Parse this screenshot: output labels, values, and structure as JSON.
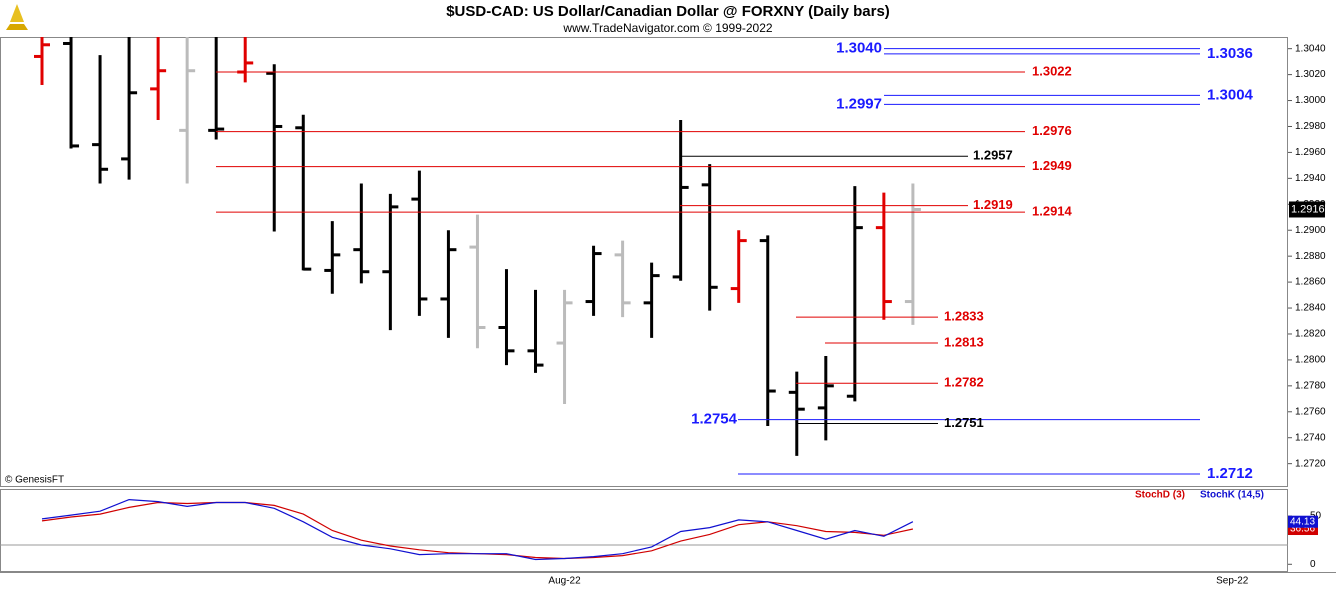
{
  "chart_data": [
    {
      "type": "ohlc",
      "title": "$USD-CAD:  US Dollar/Canadian Dollar @ FORXNY  (Daily bars)",
      "subtitle": "www.TradeNavigator.com © 1999-2022",
      "watermark": "© GenesisFT",
      "open": [
        1.3034,
        1.3044,
        1.2966,
        1.2955,
        1.3009,
        1.2977,
        1.2977,
        1.3022,
        1.3021,
        1.2979,
        1.2869,
        1.2885,
        1.2868,
        1.2924,
        1.2847,
        1.2887,
        1.2825,
        1.2807,
        1.2813,
        1.2845,
        1.2881,
        1.2844,
        1.2864,
        1.2935,
        1.2855,
        1.2892,
        1.2775,
        1.2763,
        1.2772,
        1.2902,
        1.2845
      ],
      "high": [
        1.305,
        1.305,
        1.3035,
        1.305,
        1.305,
        1.305,
        1.305,
        1.305,
        1.3028,
        1.2989,
        1.2907,
        1.2936,
        1.2928,
        1.2946,
        1.29,
        1.2912,
        1.287,
        1.2854,
        1.2854,
        1.2888,
        1.2892,
        1.2875,
        1.2985,
        1.2951,
        1.29,
        1.2896,
        1.2791,
        1.2803,
        1.2934,
        1.2929,
        1.2936
      ],
      "low": [
        1.3012,
        1.2963,
        1.2936,
        1.2939,
        1.2985,
        1.2936,
        1.297,
        1.3014,
        1.2899,
        1.2869,
        1.2851,
        1.2859,
        1.2823,
        1.2834,
        1.2817,
        1.2809,
        1.2796,
        1.279,
        1.2766,
        1.2834,
        1.2833,
        1.2817,
        1.2861,
        1.2838,
        1.2844,
        1.2749,
        1.2726,
        1.2738,
        1.2768,
        1.2831,
        1.2827
      ],
      "close": [
        1.3043,
        1.2965,
        1.2947,
        1.3006,
        1.3023,
        1.3023,
        1.2978,
        1.3029,
        1.298,
        1.287,
        1.2881,
        1.2868,
        1.2918,
        1.2847,
        1.2885,
        1.2825,
        1.2807,
        1.2796,
        1.2844,
        1.2882,
        1.2844,
        1.2865,
        1.2933,
        1.2856,
        1.2892,
        1.2776,
        1.2762,
        1.278,
        1.2902,
        1.2845,
        1.2916
      ],
      "colors": [
        "#e00000",
        "#000000",
        "#000000",
        "#000000",
        "#e00000",
        "#bbbbbb",
        "#000000",
        "#e00000",
        "#000000",
        "#000000",
        "#000000",
        "#000000",
        "#000000",
        "#000000",
        "#000000",
        "#bbbbbb",
        "#000000",
        "#000000",
        "#bbbbbb",
        "#000000",
        "#bbbbbb",
        "#000000",
        "#000000",
        "#000000",
        "#e00000",
        "#000000",
        "#000000",
        "#000000",
        "#000000",
        "#e00000",
        "#bbbbbb"
      ],
      "ylim": [
        1.2702,
        1.3049
      ],
      "yticks": [
        {
          "value": 1.272,
          "label": "1.2720"
        },
        {
          "value": 1.274,
          "label": "1.2740"
        },
        {
          "value": 1.276,
          "label": "1.2760"
        },
        {
          "value": 1.278,
          "label": "1.2780"
        },
        {
          "value": 1.28,
          "label": "1.2800"
        },
        {
          "value": 1.282,
          "label": "1.2820"
        },
        {
          "value": 1.284,
          "label": "1.2840"
        },
        {
          "value": 1.286,
          "label": "1.2860"
        },
        {
          "value": 1.288,
          "label": "1.2880"
        },
        {
          "value": 1.29,
          "label": "1.2900"
        },
        {
          "value": 1.292,
          "label": "1.2920"
        },
        {
          "value": 1.294,
          "label": "1.2940"
        },
        {
          "value": 1.296,
          "label": "1.2960"
        },
        {
          "value": 1.298,
          "label": "1.2980"
        },
        {
          "value": 1.3,
          "label": "1.3000"
        },
        {
          "value": 1.302,
          "label": "1.3020"
        },
        {
          "value": 1.304,
          "label": "1.3040"
        }
      ],
      "levels": [
        {
          "value": 1.304,
          "label": "1.3040",
          "color": "#1a1aff"
        },
        {
          "value": 1.3036,
          "label": "1.3036",
          "color": "#1a1aff"
        },
        {
          "value": 1.3022,
          "label": "1.3022",
          "color": "#e00000"
        },
        {
          "value": 1.3004,
          "label": "1.3004",
          "color": "#1a1aff"
        },
        {
          "value": 1.2997,
          "label": "1.2997",
          "color": "#1a1aff"
        },
        {
          "value": 1.2976,
          "label": "1.2976",
          "color": "#e00000"
        },
        {
          "value": 1.2957,
          "label": "1.2957",
          "color": "#000000"
        },
        {
          "value": 1.2949,
          "label": "1.2949",
          "color": "#e00000"
        },
        {
          "value": 1.2919,
          "label": "1.2919",
          "color": "#e00000"
        },
        {
          "value": 1.2914,
          "label": "1.2914",
          "color": "#e00000"
        },
        {
          "value": 1.2833,
          "label": "1.2833",
          "color": "#e00000"
        },
        {
          "value": 1.2813,
          "label": "1.2813",
          "color": "#e00000"
        },
        {
          "value": 1.2782,
          "label": "1.2782",
          "color": "#e00000"
        },
        {
          "value": 1.2754,
          "label": "1.2754",
          "color": "#1a1aff"
        },
        {
          "value": 1.2751,
          "label": "1.2751",
          "color": "#000000"
        },
        {
          "value": 1.2712,
          "label": "1.2712",
          "color": "#1a1aff"
        }
      ],
      "last_price": 1.2916
    },
    {
      "type": "line",
      "categories": [
        null,
        null,
        null,
        null,
        null,
        null,
        null,
        null,
        null,
        null,
        null,
        null,
        null,
        null,
        null,
        null,
        null,
        null,
        "Aug-22",
        null,
        null,
        null,
        null,
        null,
        null,
        null,
        null,
        null,
        null,
        null,
        null,
        null,
        null,
        null,
        null,
        null,
        null,
        null,
        null,
        null,
        null,
        "Sep-22"
      ],
      "series": [
        {
          "name": "StochD (3)",
          "color": "#d00000",
          "values": [
            45,
            49,
            52,
            59,
            64,
            63,
            64,
            64,
            61,
            52,
            35,
            25,
            19,
            15,
            12,
            11,
            10,
            7,
            6,
            7,
            9,
            14,
            24,
            31,
            41,
            44,
            40,
            34,
            33,
            30,
            36.56,
            null,
            null,
            null,
            null,
            null,
            null,
            null,
            null,
            null,
            null,
            null
          ]
        },
        {
          "name": "StochK (14,5)",
          "color": "#1010d0",
          "values": [
            47,
            51,
            55,
            67,
            65,
            60,
            64,
            64,
            58,
            44,
            28,
            20,
            16,
            10,
            11,
            11,
            11,
            5,
            6,
            8,
            11,
            18,
            34,
            38,
            46,
            44,
            35,
            26,
            35,
            29,
            44.13,
            null,
            null,
            null,
            null,
            null,
            null,
            null,
            null,
            null,
            null,
            null
          ]
        }
      ],
      "ylim": [
        -8,
        77
      ],
      "yticks": [
        0,
        50
      ],
      "hlines": [
        20
      ]
    }
  ]
}
